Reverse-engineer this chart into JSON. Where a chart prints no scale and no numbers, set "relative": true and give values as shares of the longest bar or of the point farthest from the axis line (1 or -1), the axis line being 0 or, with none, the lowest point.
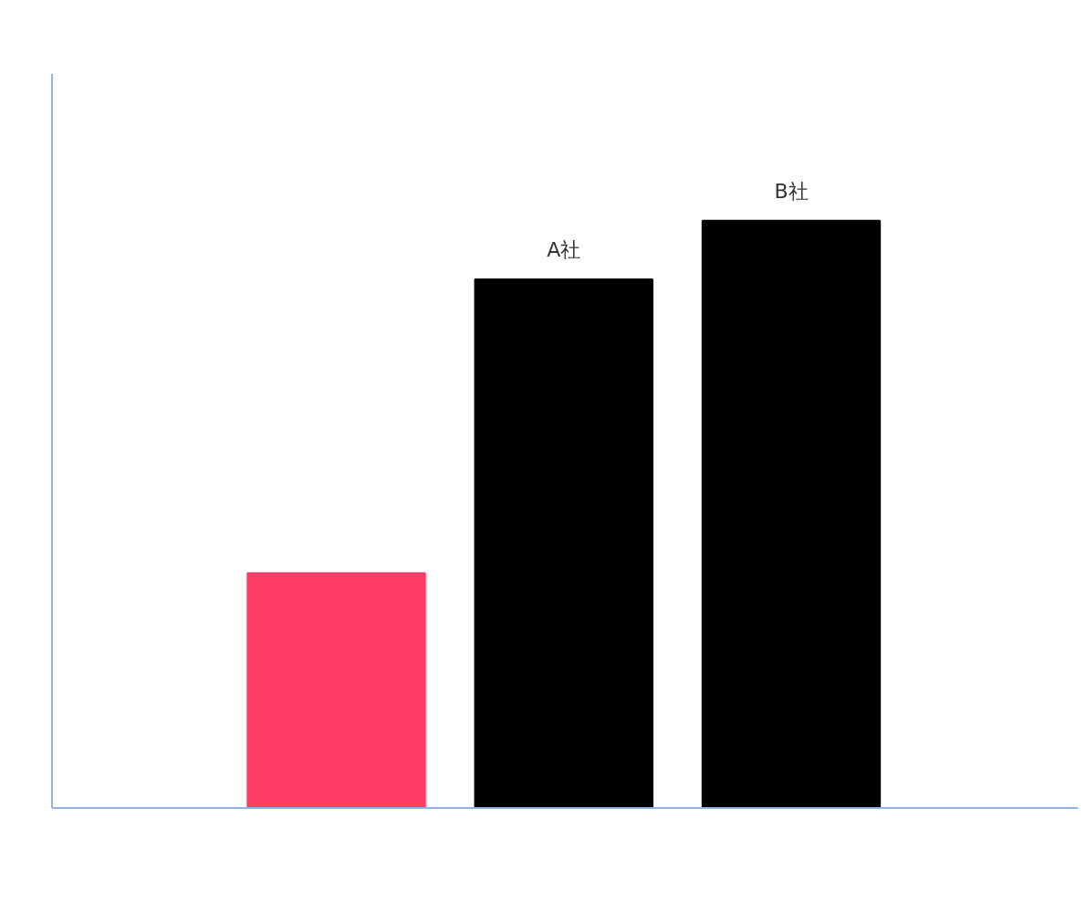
{
  "chart_data": {
    "type": "bar",
    "relative": true,
    "categories": [
      null,
      "A社",
      "B社"
    ],
    "values": [
      0.4,
      0.9,
      1
    ],
    "colors": [
      "#ff3c64",
      "#000000",
      "#000000"
    ],
    "grid": false
  }
}
